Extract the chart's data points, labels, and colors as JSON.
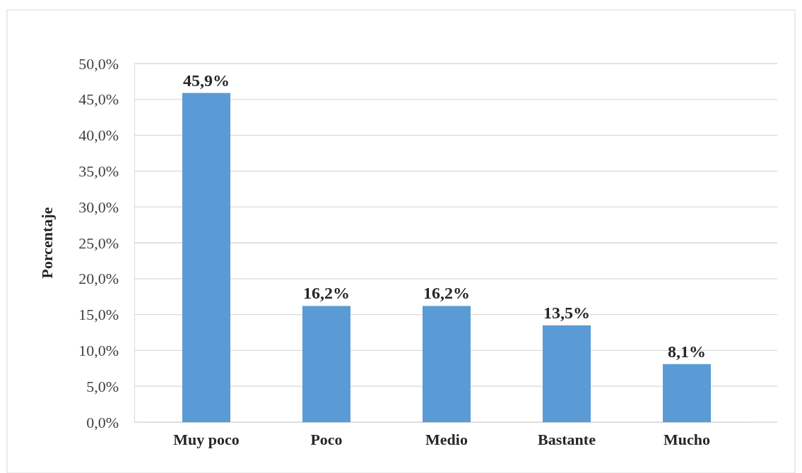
{
  "chart_data": {
    "type": "bar",
    "ylabel": "Porcentaje",
    "categories": [
      "Muy poco",
      "Poco",
      "Medio",
      "Bastante",
      "Mucho"
    ],
    "values": [
      45.9,
      16.2,
      16.2,
      13.5,
      8.1
    ],
    "value_labels": [
      "45,9%",
      "16,2%",
      "16,2%",
      "13,5%",
      "8,1%"
    ],
    "color": "#5b9bd5",
    "ylim": [
      0,
      50
    ],
    "yticks": [
      {
        "value": 0,
        "label": "0,0%"
      },
      {
        "value": 5,
        "label": "5,0%"
      },
      {
        "value": 10,
        "label": "10,0%"
      },
      {
        "value": 15,
        "label": "15,0%"
      },
      {
        "value": 20,
        "label": "20,0%"
      },
      {
        "value": 25,
        "label": "25,0%"
      },
      {
        "value": 30,
        "label": "30,0%"
      },
      {
        "value": 35,
        "label": "35,0%"
      },
      {
        "value": 40,
        "label": "40,0%"
      },
      {
        "value": 45,
        "label": "45,0%"
      },
      {
        "value": 50,
        "label": "50,0%"
      }
    ],
    "grid": "y"
  }
}
